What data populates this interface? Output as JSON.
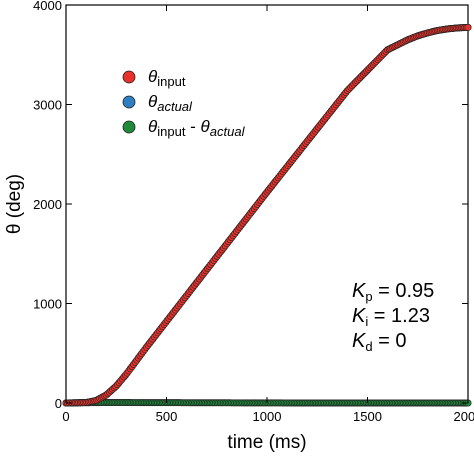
{
  "chart_data": {
    "type": "scatter",
    "xlabel": "time (ms)",
    "ylabel": "θ (deg)",
    "xlim": [
      0,
      2000
    ],
    "ylim": [
      0,
      4000
    ],
    "x_ticks": [
      0,
      500,
      1000,
      1500,
      2000
    ],
    "y_ticks": [
      0,
      1000,
      2000,
      3000,
      4000
    ],
    "grid": false,
    "legend_position": "upper-left",
    "legend": [
      {
        "symbol": "θ",
        "sub": "input",
        "rest": "",
        "color": "#e8312a"
      },
      {
        "symbol": "θ",
        "sub": "actual",
        "rest": "",
        "color": "#2d7fc1"
      },
      {
        "symbol": "θ",
        "sub": "input",
        "rest": " - θ",
        "sub2": "actual",
        "color": "#1e8a3a"
      }
    ],
    "series": [
      {
        "name": "θinput",
        "color": "#e8312a",
        "x": [
          0,
          100,
          150,
          200,
          250,
          300,
          400,
          500,
          600,
          800,
          1000,
          1200,
          1400,
          1600,
          1700,
          1750,
          1800,
          1850,
          1900,
          1950,
          2000
        ],
        "y": [
          0,
          5,
          25,
          80,
          170,
          290,
          560,
          820,
          1080,
          1600,
          2120,
          2630,
          3140,
          3550,
          3650,
          3690,
          3720,
          3745,
          3760,
          3770,
          3775
        ]
      },
      {
        "name": "θactual",
        "color": "#2d7fc1",
        "x": [
          0,
          100,
          150,
          200,
          250,
          300,
          400,
          500,
          600,
          800,
          1000,
          1200,
          1400,
          1600,
          1700,
          1750,
          1800,
          1850,
          1900,
          1950,
          2000
        ],
        "y": [
          0,
          5,
          25,
          80,
          170,
          290,
          560,
          820,
          1080,
          1600,
          2120,
          2630,
          3140,
          3550,
          3650,
          3690,
          3720,
          3745,
          3760,
          3770,
          3775
        ]
      },
      {
        "name": "θinput - θactual",
        "color": "#1e8a3a",
        "x": [
          0,
          200,
          400,
          600,
          800,
          1000,
          1200,
          1400,
          1600,
          1800,
          2000
        ],
        "y": [
          0,
          5,
          4,
          3,
          2,
          1,
          0,
          0,
          0,
          0,
          0
        ]
      }
    ],
    "annotations": [
      {
        "symbol": "K",
        "sub": "p",
        "value": " = 0.95"
      },
      {
        "symbol": "K",
        "sub": "i",
        "value": " = 1.23"
      },
      {
        "symbol": "K",
        "sub": "d",
        "value": " = 0"
      }
    ]
  }
}
